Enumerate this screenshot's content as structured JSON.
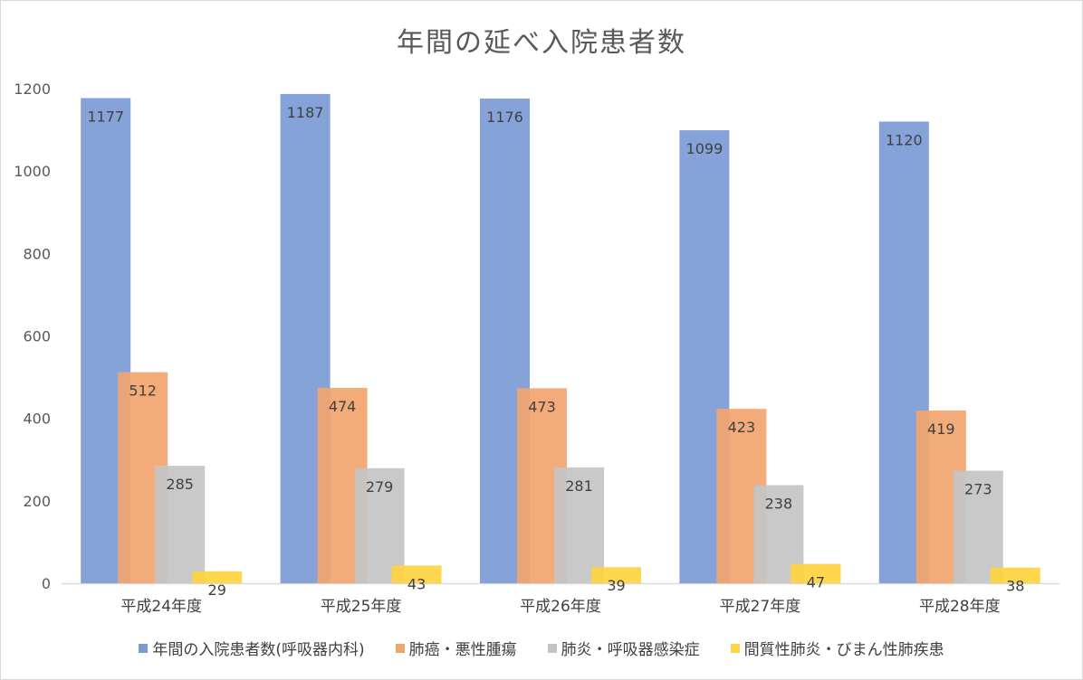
{
  "chart_data": {
    "type": "bar",
    "title": "年間の延べ入院患者数",
    "categories": [
      "平成24年度",
      "平成25年度",
      "平成26年度",
      "平成27年度",
      "平成28年度"
    ],
    "series": [
      {
        "name": "年間の入院患者数(呼吸器内科)",
        "color": "#7b9bd5",
        "values": [
          1177,
          1187,
          1176,
          1099,
          1120
        ]
      },
      {
        "name": "肺癌・悪性腫瘍",
        "color": "#f2a46f",
        "values": [
          512,
          474,
          473,
          423,
          419
        ]
      },
      {
        "name": "肺炎・呼吸器感染症",
        "color": "#c4c4c4",
        "values": [
          285,
          279,
          281,
          238,
          273
        ]
      },
      {
        "name": "間質性肺炎・びまん性肺疾患",
        "color": "#ffd440",
        "values": [
          29,
          43,
          39,
          47,
          38
        ]
      }
    ],
    "ylim": [
      0,
      1200
    ],
    "yticks": [
      0,
      200,
      400,
      600,
      800,
      1000,
      1200
    ],
    "grid": false,
    "legend_position": "bottom"
  }
}
